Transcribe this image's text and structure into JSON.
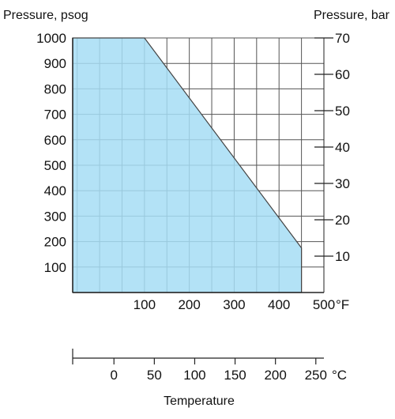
{
  "colors": {
    "fill": "#a6ddf5",
    "grid": "#555555",
    "edge": "#444444",
    "text": "#111111"
  },
  "chart_data": {
    "type": "area",
    "title": "",
    "left_axis_title": "Pressure, psog",
    "right_axis_title": "Pressure, bar",
    "bottom_axis_title": "Temperature",
    "x_unit_f": "°F",
    "x_unit_c": "°C",
    "x_range_f": [
      -60,
      500
    ],
    "y_range_psig": [
      0,
      1000
    ],
    "y_range_bar": [
      0,
      70
    ],
    "series": [
      {
        "x_f": [
          -60,
          100,
          450,
          450,
          -60
        ],
        "y_psig": [
          1000,
          1000,
          175,
          0,
          0
        ]
      }
    ],
    "grid": true,
    "x_ticks_f": [
      100,
      200,
      300,
      400,
      500
    ],
    "x_tick_labels_f": [
      "100",
      "200",
      "300",
      "400",
      "500"
    ],
    "y_ticks_psig": [
      100,
      200,
      300,
      400,
      500,
      600,
      700,
      800,
      900,
      1000
    ],
    "y_tick_labels_psig": [
      "100",
      "200",
      "300",
      "400",
      "500",
      "600",
      "700",
      "800",
      "900",
      "1000"
    ],
    "y_ticks_bar": [
      10,
      20,
      30,
      40,
      50,
      60,
      70
    ],
    "y_tick_labels_bar": [
      "10",
      "20",
      "30",
      "40",
      "50",
      "60",
      "70"
    ],
    "x_ticks_c": [
      0,
      50,
      100,
      150,
      200,
      250
    ],
    "x_tick_labels_c": [
      "0",
      "50",
      "100",
      "150",
      "200",
      "250"
    ]
  }
}
